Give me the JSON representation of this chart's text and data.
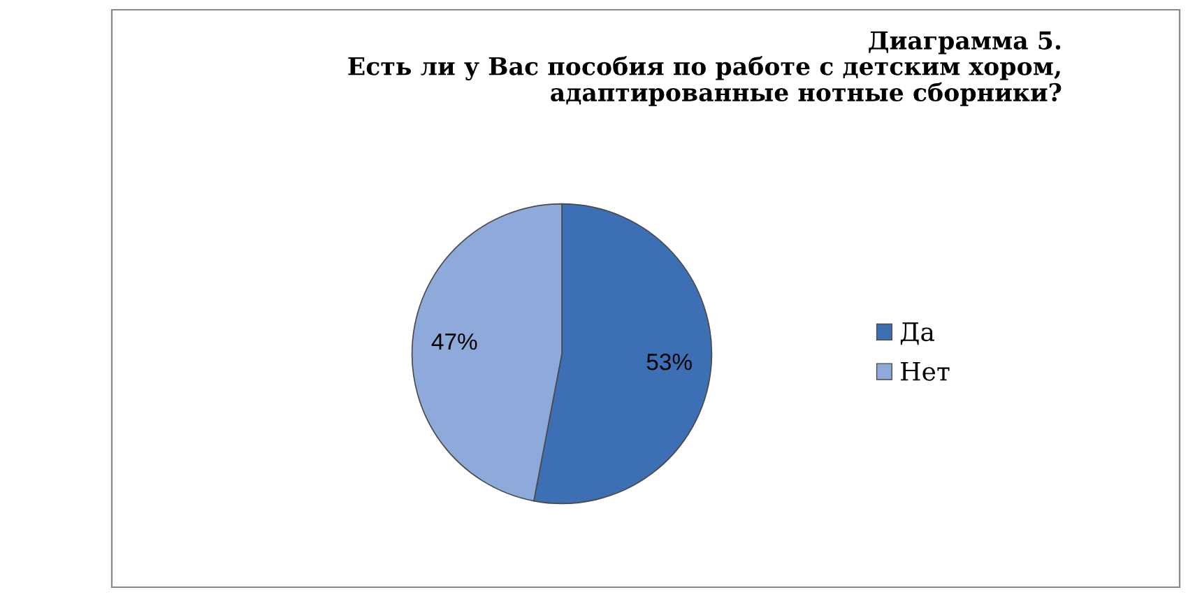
{
  "chart_data": {
    "type": "pie",
    "title": "Диаграмма 5.\nЕсть ли у Вас пособия по работе с детским хором,\nадаптированные нотные сборники?",
    "categories": [
      "Да",
      "Нет"
    ],
    "values": [
      53,
      47
    ],
    "colors": [
      "#3d6fb5",
      "#8eaadb"
    ],
    "value_labels": [
      "53%",
      "47%"
    ],
    "legend": "right"
  }
}
